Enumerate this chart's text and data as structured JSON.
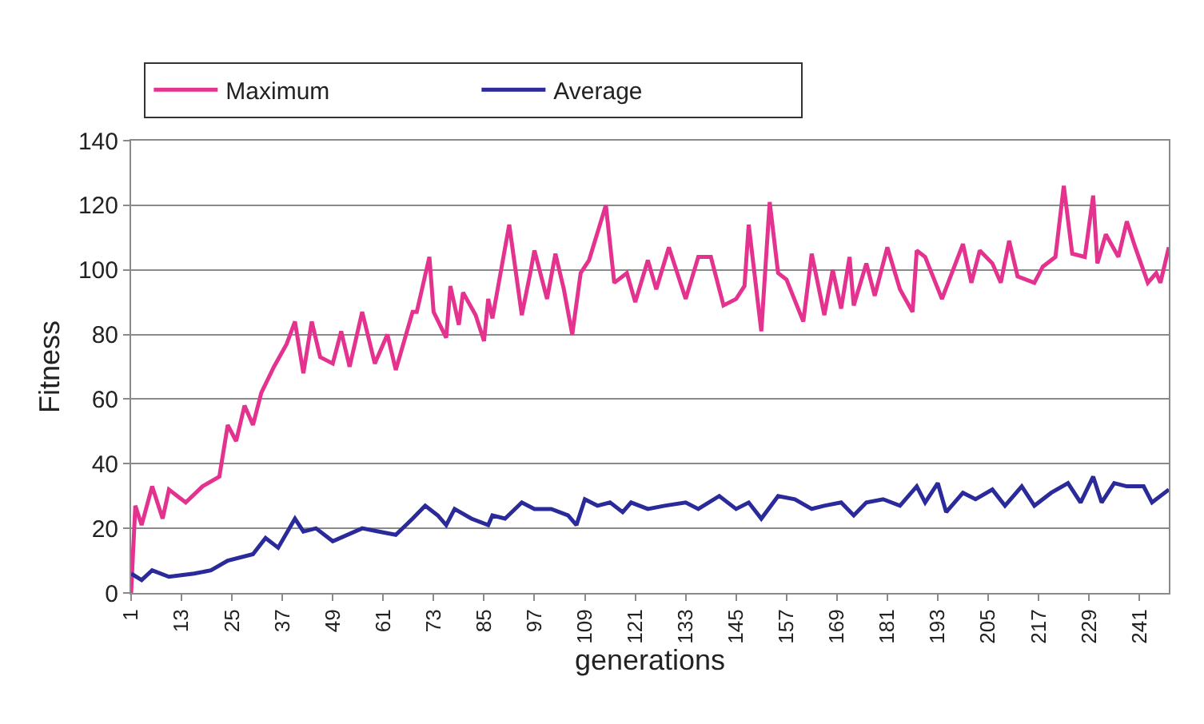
{
  "chart_data": {
    "type": "line",
    "xlabel": "generations",
    "ylabel": "Fitness",
    "xlim": [
      1,
      248
    ],
    "xticks": [
      1,
      13,
      25,
      37,
      49,
      61,
      73,
      85,
      97,
      109,
      121,
      133,
      145,
      157,
      169,
      181,
      193,
      205,
      217,
      229,
      241
    ],
    "ylim": [
      0,
      140
    ],
    "yticks": [
      0,
      20,
      40,
      60,
      80,
      100,
      120,
      140
    ],
    "grid": "y",
    "legend": "top",
    "marker": "none",
    "line_style": "solid",
    "series": [
      {
        "name": "Maximum",
        "color": "#e4338f",
        "x": [
          1,
          2,
          3.5,
          6,
          8.5,
          10,
          12,
          14,
          18,
          22,
          24,
          26,
          28,
          30,
          32,
          35,
          38,
          40,
          42,
          44,
          46,
          49,
          51,
          53,
          56,
          59,
          62,
          64,
          68,
          69,
          72,
          73,
          76,
          77,
          79,
          80,
          83,
          85,
          86,
          87,
          91,
          94,
          96,
          97,
          100,
          102,
          104,
          106,
          108,
          110,
          114,
          116,
          119,
          121,
          124,
          126,
          129,
          133,
          136,
          139,
          142,
          145,
          147,
          148,
          151,
          153,
          155,
          157,
          161,
          163,
          166,
          168,
          170,
          172,
          173,
          176,
          178,
          181,
          184,
          187,
          188,
          190,
          194,
          199,
          201,
          203,
          206,
          208,
          210,
          212,
          216,
          218,
          221,
          223,
          225,
          228,
          230,
          231,
          233,
          236,
          238,
          240,
          243,
          245,
          246,
          248
        ],
        "values": [
          0,
          27,
          21,
          33,
          23,
          32,
          30,
          28,
          33,
          36,
          52,
          47,
          58,
          52,
          62,
          70,
          77,
          84,
          68,
          84,
          73,
          71,
          81,
          70,
          87,
          71,
          80,
          69,
          87,
          87,
          104,
          87,
          79,
          95,
          83,
          93,
          86,
          78,
          91,
          85,
          114,
          86,
          99,
          106,
          91,
          105,
          94,
          80,
          99,
          103,
          120,
          96,
          99,
          90,
          103,
          94,
          107,
          91,
          104,
          104,
          89,
          91,
          95,
          114,
          81,
          121,
          99,
          97,
          84,
          105,
          86,
          100,
          88,
          104,
          89,
          102,
          92,
          107,
          94,
          87,
          106,
          104,
          91,
          108,
          96,
          106,
          102,
          96,
          109,
          98,
          96,
          101,
          104,
          126,
          105,
          104,
          123,
          102,
          111,
          104,
          115,
          107,
          96,
          99,
          96,
          107
        ]
      },
      {
        "name": "Average",
        "color": "#2b2a9b",
        "x": [
          1,
          3.5,
          6,
          10,
          16,
          20,
          24,
          30,
          33,
          36,
          40,
          42,
          45,
          49,
          56,
          60,
          64,
          68,
          71,
          74,
          76,
          78,
          82,
          86,
          87,
          90,
          94,
          97,
          101,
          105,
          107,
          109,
          112,
          115,
          118,
          120,
          124,
          128,
          133,
          136,
          141,
          145,
          148,
          151,
          155,
          159,
          163,
          166,
          170,
          173,
          176,
          180,
          184,
          188,
          190,
          193,
          195,
          199,
          202,
          206,
          209,
          213,
          216,
          220,
          224,
          227,
          230,
          232,
          235,
          238,
          242,
          244,
          248
        ],
        "values": [
          6,
          4,
          7,
          5,
          6,
          7,
          10,
          12,
          17,
          14,
          23,
          19,
          20,
          16,
          20,
          19,
          18,
          23,
          27,
          24,
          21,
          26,
          23,
          21,
          24,
          23,
          28,
          26,
          26,
          24,
          21,
          29,
          27,
          28,
          25,
          28,
          26,
          27,
          28,
          26,
          30,
          26,
          28,
          23,
          30,
          29,
          26,
          27,
          28,
          24,
          28,
          29,
          27,
          33,
          28,
          34,
          25,
          31,
          29,
          32,
          27,
          33,
          27,
          31,
          34,
          28,
          36,
          28,
          34,
          33,
          33,
          28,
          32
        ]
      }
    ]
  }
}
